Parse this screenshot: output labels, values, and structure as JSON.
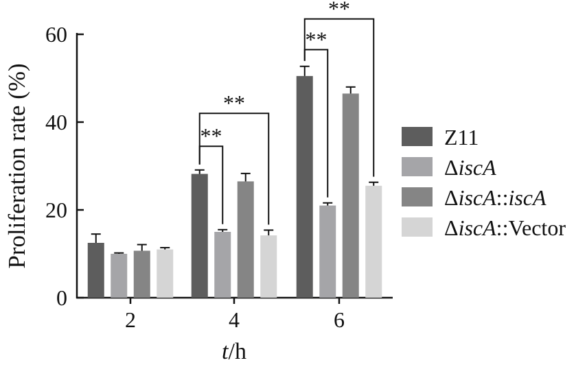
{
  "chart_data": {
    "type": "bar",
    "xlabel_italic": "t",
    "xlabel_rest": "/h",
    "ylabel": "Proliferation rate (%)",
    "ylim": [
      0,
      60
    ],
    "yticks": [
      0,
      20,
      40,
      60
    ],
    "categories": [
      "2",
      "4",
      "6"
    ],
    "grid": false,
    "legend_position": "right",
    "series": [
      {
        "name": "Z11",
        "name_parts": [
          {
            "t": "Z11",
            "i": false
          }
        ],
        "color": "#5d5d5d",
        "values": [
          12.5,
          28.2,
          50.5
        ],
        "errors": [
          2.0,
          0.9,
          2.2
        ]
      },
      {
        "name": "ΔiscA",
        "name_parts": [
          {
            "t": "Δ",
            "i": false
          },
          {
            "t": "iscA",
            "i": true
          }
        ],
        "color": "#a5a5a8",
        "values": [
          10.0,
          15.0,
          21.0
        ],
        "errors": [
          0.2,
          0.5,
          0.6
        ]
      },
      {
        "name": "ΔiscA::iscA",
        "name_parts": [
          {
            "t": "Δ",
            "i": false
          },
          {
            "t": "iscA",
            "i": true
          },
          {
            "t": "::",
            "i": false
          },
          {
            "t": "iscA",
            "i": true
          }
        ],
        "color": "#858585",
        "values": [
          10.7,
          26.5,
          46.5
        ],
        "errors": [
          1.4,
          1.8,
          1.5
        ]
      },
      {
        "name": "ΔiscA::Vector",
        "name_parts": [
          {
            "t": "Δ",
            "i": false
          },
          {
            "t": "iscA",
            "i": true
          },
          {
            "t": "::Vector",
            "i": false
          }
        ],
        "color": "#d5d5d5",
        "values": [
          11.0,
          14.2,
          25.5
        ],
        "errors": [
          0.4,
          1.2,
          0.8
        ]
      }
    ],
    "annotations": [
      {
        "text": "**",
        "category": "4",
        "from_series": 0,
        "to_series": 1,
        "level": 34.5
      },
      {
        "text": "**",
        "category": "4",
        "from_series": 0,
        "to_series": 3,
        "level": 42.0
      },
      {
        "text": "**",
        "category": "6",
        "from_series": 0,
        "to_series": 1,
        "level": 56.5
      },
      {
        "text": "**",
        "category": "6",
        "from_series": 0,
        "to_series": 3,
        "level": 63.5
      }
    ]
  }
}
